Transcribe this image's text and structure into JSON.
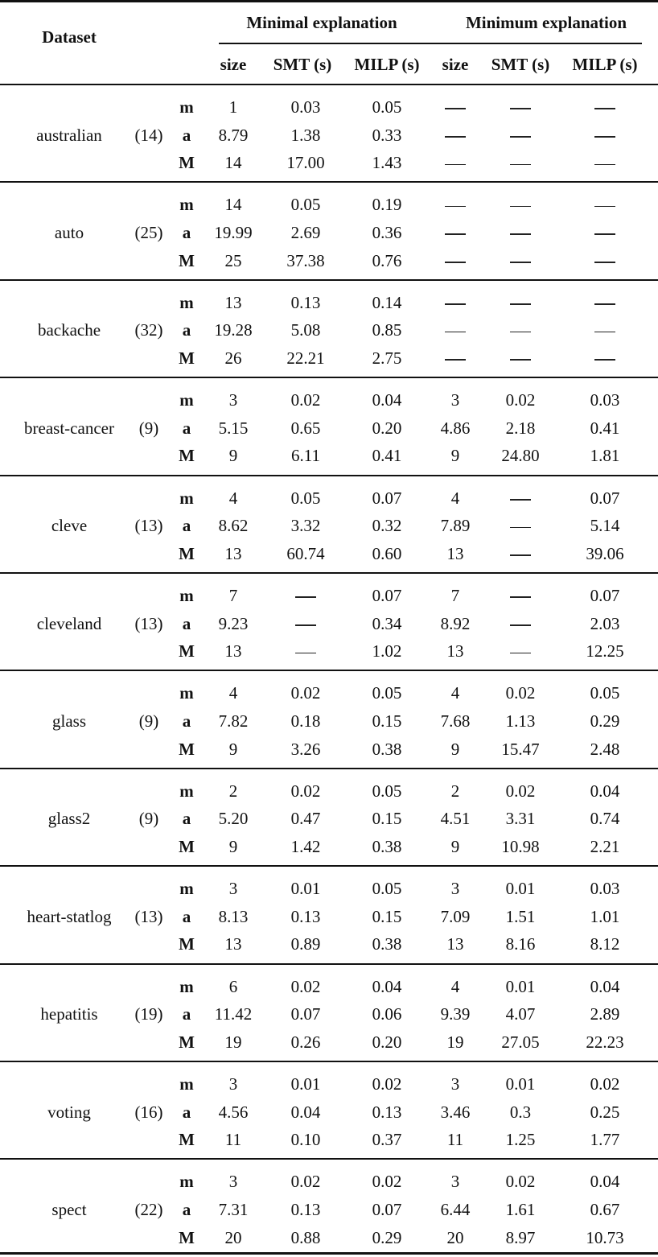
{
  "table": {
    "header": {
      "dataset": "Dataset",
      "group_minimal": "Minimal explanation",
      "group_minimum": "Minimum explanation",
      "columns": [
        "size",
        "SMT (s)",
        "MILP (s)",
        "size",
        "SMT (s)",
        "MILP (s)"
      ]
    },
    "stat_labels": [
      "m",
      "a",
      "M"
    ],
    "dash": "—",
    "groups": [
      {
        "name": "australian",
        "count": "(14)",
        "rows": [
          [
            "1",
            "0.03",
            "0.05",
            "—",
            "—",
            "—"
          ],
          [
            "8.79",
            "1.38",
            "0.33",
            "—",
            "—",
            "—"
          ],
          [
            "14",
            "17.00",
            "1.43",
            "—",
            "—",
            "—"
          ]
        ]
      },
      {
        "name": "auto",
        "count": "(25)",
        "rows": [
          [
            "14",
            "0.05",
            "0.19",
            "—",
            "—",
            "—"
          ],
          [
            "19.99",
            "2.69",
            "0.36",
            "—",
            "—",
            "—"
          ],
          [
            "25",
            "37.38",
            "0.76",
            "—",
            "—",
            "—"
          ]
        ]
      },
      {
        "name": "backache",
        "count": "(32)",
        "rows": [
          [
            "13",
            "0.13",
            "0.14",
            "—",
            "—",
            "—"
          ],
          [
            "19.28",
            "5.08",
            "0.85",
            "—",
            "—",
            "—"
          ],
          [
            "26",
            "22.21",
            "2.75",
            "—",
            "—",
            "—"
          ]
        ]
      },
      {
        "name": "breast-cancer",
        "count": "(9)",
        "rows": [
          [
            "3",
            "0.02",
            "0.04",
            "3",
            "0.02",
            "0.03"
          ],
          [
            "5.15",
            "0.65",
            "0.20",
            "4.86",
            "2.18",
            "0.41"
          ],
          [
            "9",
            "6.11",
            "0.41",
            "9",
            "24.80",
            "1.81"
          ]
        ]
      },
      {
        "name": "cleve",
        "count": "(13)",
        "rows": [
          [
            "4",
            "0.05",
            "0.07",
            "4",
            "—",
            "0.07"
          ],
          [
            "8.62",
            "3.32",
            "0.32",
            "7.89",
            "—",
            "5.14"
          ],
          [
            "13",
            "60.74",
            "0.60",
            "13",
            "—",
            "39.06"
          ]
        ]
      },
      {
        "name": "cleveland",
        "count": "(13)",
        "rows": [
          [
            "7",
            "—",
            "0.07",
            "7",
            "—",
            "0.07"
          ],
          [
            "9.23",
            "—",
            "0.34",
            "8.92",
            "—",
            "2.03"
          ],
          [
            "13",
            "—",
            "1.02",
            "13",
            "—",
            "12.25"
          ]
        ]
      },
      {
        "name": "glass",
        "count": "(9)",
        "rows": [
          [
            "4",
            "0.02",
            "0.05",
            "4",
            "0.02",
            "0.05"
          ],
          [
            "7.82",
            "0.18",
            "0.15",
            "7.68",
            "1.13",
            "0.29"
          ],
          [
            "9",
            "3.26",
            "0.38",
            "9",
            "15.47",
            "2.48"
          ]
        ]
      },
      {
        "name": "glass2",
        "count": "(9)",
        "rows": [
          [
            "2",
            "0.02",
            "0.05",
            "2",
            "0.02",
            "0.04"
          ],
          [
            "5.20",
            "0.47",
            "0.15",
            "4.51",
            "3.31",
            "0.74"
          ],
          [
            "9",
            "1.42",
            "0.38",
            "9",
            "10.98",
            "2.21"
          ]
        ]
      },
      {
        "name": "heart-statlog",
        "count": "(13)",
        "rows": [
          [
            "3",
            "0.01",
            "0.05",
            "3",
            "0.01",
            "0.03"
          ],
          [
            "8.13",
            "0.13",
            "0.15",
            "7.09",
            "1.51",
            "1.01"
          ],
          [
            "13",
            "0.89",
            "0.38",
            "13",
            "8.16",
            "8.12"
          ]
        ]
      },
      {
        "name": "hepatitis",
        "count": "(19)",
        "rows": [
          [
            "6",
            "0.02",
            "0.04",
            "4",
            "0.01",
            "0.04"
          ],
          [
            "11.42",
            "0.07",
            "0.06",
            "9.39",
            "4.07",
            "2.89"
          ],
          [
            "19",
            "0.26",
            "0.20",
            "19",
            "27.05",
            "22.23"
          ]
        ]
      },
      {
        "name": "voting",
        "count": "(16)",
        "rows": [
          [
            "3",
            "0.01",
            "0.02",
            "3",
            "0.01",
            "0.02"
          ],
          [
            "4.56",
            "0.04",
            "0.13",
            "3.46",
            "0.3",
            "0.25"
          ],
          [
            "11",
            "0.10",
            "0.37",
            "11",
            "1.25",
            "1.77"
          ]
        ]
      },
      {
        "name": "spect",
        "count": "(22)",
        "rows": [
          [
            "3",
            "0.02",
            "0.02",
            "3",
            "0.02",
            "0.04"
          ],
          [
            "7.31",
            "0.13",
            "0.07",
            "6.44",
            "1.61",
            "0.67"
          ],
          [
            "20",
            "0.88",
            "0.29",
            "20",
            "8.97",
            "10.73"
          ]
        ]
      }
    ]
  }
}
